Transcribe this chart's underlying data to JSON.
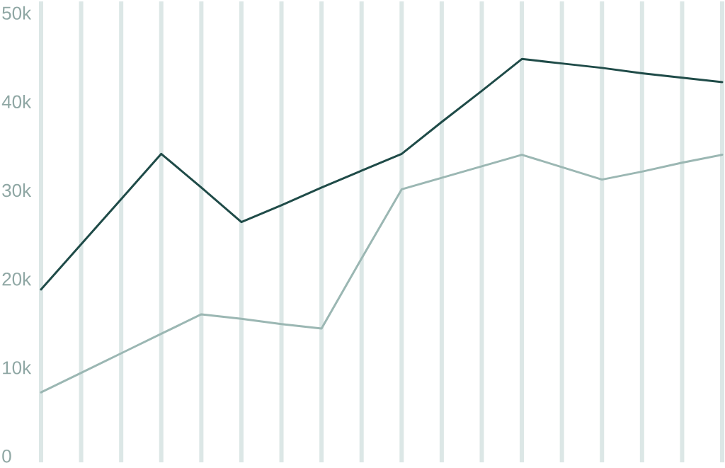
{
  "chart_data": {
    "type": "line",
    "categories": [
      null,
      null,
      null,
      null,
      null,
      null,
      null,
      null,
      null,
      null,
      null,
      null,
      null,
      null,
      null,
      null,
      null,
      null
    ],
    "ylim": [
      -700,
      51300
    ],
    "yticks": [
      {
        "value": 0,
        "label": "0"
      },
      {
        "value": 10000,
        "label": "10k"
      },
      {
        "value": 20000,
        "label": "20k"
      },
      {
        "value": 30000,
        "label": "30k"
      },
      {
        "value": 40000,
        "label": "40k"
      },
      {
        "value": 50000,
        "label": "50k"
      }
    ],
    "grid": "x",
    "line_style": "solid",
    "series": [
      {
        "color": "#1f4b48",
        "values": [
          18800,
          23900,
          29000,
          34100,
          30300,
          26400,
          28300,
          30300,
          32200,
          34100,
          37700,
          41200,
          44800,
          44300,
          43800,
          43200,
          42700,
          42200
        ]
      },
      {
        "color": "#9bb7b3",
        "values": [
          7200,
          9400,
          11600,
          13800,
          16000,
          15500,
          14900,
          14400,
          22300,
          30100,
          31400,
          32700,
          34000,
          32600,
          31200,
          32100,
          33100,
          34000
        ]
      }
    ]
  }
}
